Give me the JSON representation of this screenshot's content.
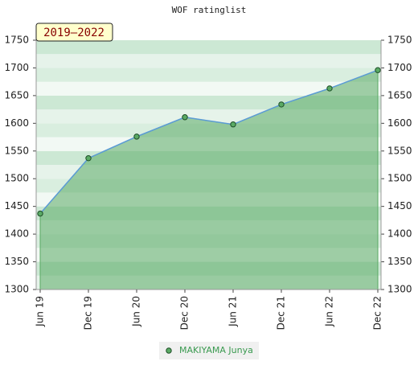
{
  "chart_data": {
    "type": "line",
    "title": "WOF ratinglist",
    "annotation": "2019–2022",
    "categories": [
      "Jun 19",
      "Dec 19",
      "Jun 20",
      "Dec 20",
      "Jun 21",
      "Dec 21",
      "Jun 22",
      "Dec 22"
    ],
    "series": [
      {
        "name": "MAKIYAMA Junya",
        "color": "#5aaa64",
        "line_color": "#5b9bd5",
        "values": [
          1437,
          1537,
          1576,
          1611,
          1598,
          1634,
          1663,
          1696
        ]
      }
    ],
    "ylim": [
      1300,
      1750
    ],
    "yticks": [
      1300,
      1350,
      1400,
      1450,
      1500,
      1550,
      1600,
      1650,
      1700,
      1750
    ],
    "right_axis": true,
    "area": true
  }
}
